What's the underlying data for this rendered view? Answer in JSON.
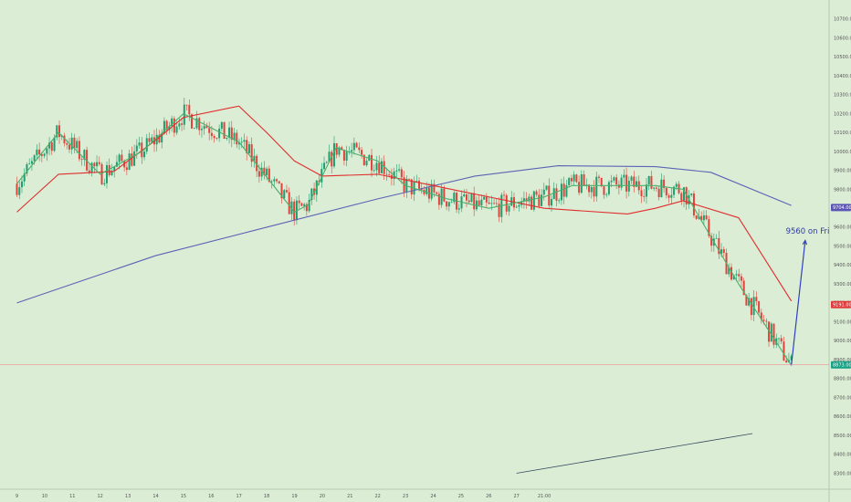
{
  "chart_data": {
    "type": "candlestick",
    "title": "",
    "y_ticks": [
      "10700.00",
      "10600.00",
      "10500.00",
      "10400.00",
      "10300.00",
      "10200.00",
      "10100.00",
      "10000.00",
      "9900.00",
      "9800.00",
      "9700.00",
      "9600.00",
      "9500.00",
      "9400.00",
      "9300.00",
      "9200.00",
      "9100.00",
      "9000.00",
      "8900.00",
      "8800.00",
      "8700.00",
      "8600.00",
      "8500.00",
      "8400.00",
      "8300.00"
    ],
    "y_range": [
      8300,
      10750
    ],
    "x_ticks": [
      "9",
      "10",
      "11",
      "12",
      "13",
      "14",
      "15",
      "16",
      "17",
      "18",
      "19",
      "20",
      "21",
      "22",
      "23",
      "24",
      "25",
      "26",
      "27",
      "21:00"
    ],
    "current_price": 8873.0,
    "price_badges": [
      {
        "value": 9704.0,
        "label": "9704.00",
        "color": "#5b56b5"
      },
      {
        "value": 9191.0,
        "label": "9191.00",
        "color": "#e03a3a"
      },
      {
        "value": 8873.0,
        "label": "8873.00",
        "color": "#16a085"
      }
    ],
    "series": [
      {
        "name": "",
        "color": "#5b64b5",
        "x": [
          0,
          5,
          9,
          13,
          16.5,
          19.5,
          23,
          25,
          27.9
        ],
        "y": [
          9200,
          9450,
          9600,
          9750,
          9870,
          9925,
          9920,
          9890,
          9715
        ]
      },
      {
        "name": "",
        "color": "#e02d2d",
        "x": [
          0,
          1.5,
          3.5,
          5,
          6,
          8,
          9,
          10,
          11,
          13,
          15,
          17,
          19,
          22,
          23,
          24,
          26,
          27.9
        ],
        "y": [
          9680,
          9880,
          9895,
          10060,
          10180,
          10240,
          10100,
          9950,
          9870,
          9880,
          9820,
          9760,
          9700,
          9670,
          9700,
          9740,
          9650,
          9210
        ]
      },
      {
        "name": "",
        "color": "#4caf6b",
        "x": [
          0,
          1.5,
          3,
          4.5,
          6,
          8,
          10,
          10.5,
          11.5,
          13,
          14,
          15.5,
          17,
          19,
          20,
          23,
          24,
          26,
          27.9
        ],
        "y": [
          9830,
          10100,
          9880,
          10000,
          10200,
          10050,
          9680,
          9720,
          10020,
          9950,
          9820,
          9750,
          9700,
          9760,
          9820,
          9820,
          9800,
          9300,
          8870
        ]
      },
      {
        "name": "",
        "color": "#34495e",
        "x": [
          18,
          26.5
        ],
        "y": [
          8300,
          8510
        ]
      },
      {
        "name": "",
        "color": "#3040c0",
        "x": [
          27.9,
          28.4
        ],
        "y": [
          8870,
          9530
        ]
      }
    ],
    "annotations": [
      {
        "text": "9560 on Fri",
        "x": 27.7,
        "y": 9565,
        "color": "#2c3aa8"
      }
    ]
  }
}
